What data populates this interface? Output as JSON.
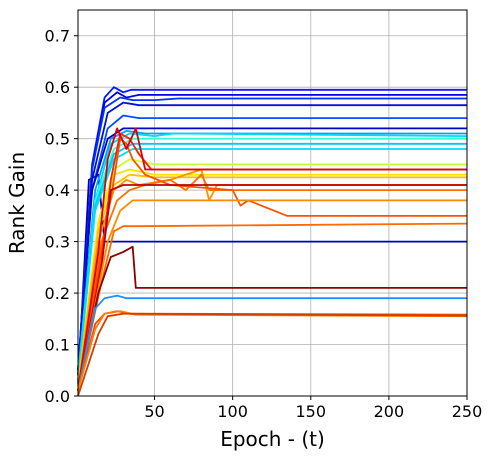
{
  "chart_data": {
    "type": "line",
    "title": "",
    "xlabel": "Epoch - (t)",
    "ylabel": "Rank Gain",
    "xlim": [
      1,
      250
    ],
    "ylim": [
      0.0,
      0.75
    ],
    "xticks": [
      50,
      100,
      150,
      200,
      250
    ],
    "yticks": [
      0.0,
      0.1,
      0.2,
      0.3,
      0.4,
      0.5,
      0.6,
      0.7
    ],
    "xtick_labels": [
      "50",
      "100",
      "150",
      "200",
      "250"
    ],
    "ytick_labels": [
      "0.0",
      "0.1",
      "0.2",
      "0.3",
      "0.4",
      "0.5",
      "0.6",
      "0.7"
    ],
    "grid": true,
    "legend": "none",
    "colormap": "jet",
    "series": [
      {
        "color": "#0000b0",
        "values": [
          [
            1,
            0.02
          ],
          [
            8,
            0.42
          ],
          [
            14,
            0.43
          ],
          [
            18,
            0.3
          ],
          [
            250,
            0.3
          ]
        ]
      },
      {
        "color": "#0018ff",
        "values": [
          [
            1,
            0.05
          ],
          [
            10,
            0.45
          ],
          [
            18,
            0.58
          ],
          [
            24,
            0.6
          ],
          [
            30,
            0.59
          ],
          [
            35,
            0.595
          ],
          [
            250,
            0.595
          ]
        ]
      },
      {
        "color": "#0000e0",
        "values": [
          [
            1,
            0.05
          ],
          [
            10,
            0.44
          ],
          [
            18,
            0.57
          ],
          [
            26,
            0.59
          ],
          [
            32,
            0.58
          ],
          [
            40,
            0.585
          ],
          [
            250,
            0.585
          ]
        ]
      },
      {
        "color": "#0030ff",
        "values": [
          [
            1,
            0.05
          ],
          [
            10,
            0.44
          ],
          [
            18,
            0.56
          ],
          [
            28,
            0.58
          ],
          [
            36,
            0.575
          ],
          [
            50,
            0.575
          ],
          [
            65,
            0.578
          ],
          [
            250,
            0.578
          ]
        ]
      },
      {
        "color": "#0010d0",
        "values": [
          [
            1,
            0.04
          ],
          [
            10,
            0.42
          ],
          [
            20,
            0.55
          ],
          [
            30,
            0.57
          ],
          [
            40,
            0.565
          ],
          [
            250,
            0.565
          ]
        ]
      },
      {
        "color": "#0050ff",
        "values": [
          [
            1,
            0.04
          ],
          [
            10,
            0.4
          ],
          [
            20,
            0.52
          ],
          [
            30,
            0.545
          ],
          [
            40,
            0.54
          ],
          [
            250,
            0.54
          ]
        ]
      },
      {
        "color": "#0000c8",
        "values": [
          [
            1,
            0.04
          ],
          [
            10,
            0.4
          ],
          [
            20,
            0.5
          ],
          [
            30,
            0.52
          ],
          [
            40,
            0.52
          ],
          [
            250,
            0.52
          ]
        ]
      },
      {
        "color": "#00a0ff",
        "values": [
          [
            1,
            0.04
          ],
          [
            12,
            0.4
          ],
          [
            22,
            0.5
          ],
          [
            32,
            0.515
          ],
          [
            44,
            0.51
          ],
          [
            250,
            0.51
          ]
        ]
      },
      {
        "color": "#00d8ff",
        "values": [
          [
            1,
            0.03
          ],
          [
            12,
            0.38
          ],
          [
            22,
            0.49
          ],
          [
            34,
            0.51
          ],
          [
            50,
            0.505
          ],
          [
            62,
            0.51
          ],
          [
            250,
            0.505
          ]
        ]
      },
      {
        "color": "#30ffd0",
        "values": [
          [
            1,
            0.03
          ],
          [
            12,
            0.38
          ],
          [
            24,
            0.48
          ],
          [
            36,
            0.5
          ],
          [
            50,
            0.5
          ],
          [
            250,
            0.5
          ]
        ]
      },
      {
        "color": "#00c8ff",
        "values": [
          [
            1,
            0.03
          ],
          [
            12,
            0.37
          ],
          [
            24,
            0.47
          ],
          [
            36,
            0.49
          ],
          [
            50,
            0.49
          ],
          [
            250,
            0.49
          ]
        ]
      },
      {
        "color": "#00e0ee",
        "values": [
          [
            1,
            0.03
          ],
          [
            12,
            0.36
          ],
          [
            24,
            0.46
          ],
          [
            36,
            0.48
          ],
          [
            50,
            0.48
          ],
          [
            250,
            0.48
          ]
        ]
      },
      {
        "color": "#c8ff30",
        "values": [
          [
            1,
            0.02
          ],
          [
            14,
            0.34
          ],
          [
            24,
            0.44
          ],
          [
            34,
            0.46
          ],
          [
            50,
            0.45
          ],
          [
            250,
            0.45
          ]
        ]
      },
      {
        "color": "#ffe000",
        "values": [
          [
            1,
            0.02
          ],
          [
            14,
            0.33
          ],
          [
            24,
            0.43
          ],
          [
            34,
            0.44
          ],
          [
            50,
            0.43
          ],
          [
            250,
            0.43
          ]
        ]
      },
      {
        "color": "#ffc000",
        "values": [
          [
            1,
            0.02
          ],
          [
            14,
            0.32
          ],
          [
            24,
            0.41
          ],
          [
            34,
            0.43
          ],
          [
            50,
            0.425
          ],
          [
            250,
            0.425
          ]
        ]
      },
      {
        "color": "#ff9000",
        "values": [
          [
            1,
            0.01
          ],
          [
            14,
            0.3
          ],
          [
            24,
            0.4
          ],
          [
            32,
            0.42
          ],
          [
            40,
            0.41
          ],
          [
            60,
            0.42
          ],
          [
            80,
            0.44
          ],
          [
            85,
            0.38
          ],
          [
            90,
            0.41
          ],
          [
            250,
            0.41
          ]
        ]
      },
      {
        "color": "#ff7000",
        "values": [
          [
            1,
            0.01
          ],
          [
            16,
            0.3
          ],
          [
            26,
            0.38
          ],
          [
            34,
            0.4
          ],
          [
            44,
            0.41
          ],
          [
            60,
            0.42
          ],
          [
            70,
            0.4
          ],
          [
            80,
            0.43
          ],
          [
            85,
            0.4
          ],
          [
            250,
            0.4
          ]
        ]
      },
      {
        "color": "#ff5000",
        "values": [
          [
            1,
            0.01
          ],
          [
            16,
            0.28
          ],
          [
            24,
            0.42
          ],
          [
            28,
            0.5
          ],
          [
            32,
            0.49
          ],
          [
            36,
            0.46
          ],
          [
            44,
            0.43
          ],
          [
            60,
            0.41
          ],
          [
            100,
            0.4
          ],
          [
            105,
            0.37
          ],
          [
            110,
            0.38
          ],
          [
            135,
            0.35
          ],
          [
            250,
            0.35
          ]
        ]
      },
      {
        "color": "#ff2000",
        "values": [
          [
            1,
            0.01
          ],
          [
            16,
            0.26
          ],
          [
            22,
            0.42
          ],
          [
            28,
            0.51
          ],
          [
            34,
            0.5
          ],
          [
            40,
            0.47
          ],
          [
            48,
            0.44
          ],
          [
            250,
            0.44
          ]
        ]
      },
      {
        "color": "#e00000",
        "values": [
          [
            1,
            0.01
          ],
          [
            14,
            0.28
          ],
          [
            20,
            0.46
          ],
          [
            26,
            0.52
          ],
          [
            32,
            0.48
          ],
          [
            38,
            0.52
          ],
          [
            44,
            0.44
          ],
          [
            250,
            0.44
          ]
        ]
      },
      {
        "color": "#c00000",
        "values": [
          [
            1,
            0.01
          ],
          [
            16,
            0.25
          ],
          [
            22,
            0.4
          ],
          [
            30,
            0.41
          ],
          [
            40,
            0.41
          ],
          [
            250,
            0.41
          ]
        ]
      },
      {
        "color": "#ff6a00",
        "values": [
          [
            1,
            0.01
          ],
          [
            16,
            0.22
          ],
          [
            24,
            0.32
          ],
          [
            30,
            0.33
          ],
          [
            40,
            0.33
          ],
          [
            250,
            0.335
          ]
        ]
      },
      {
        "color": "#ff8a00",
        "values": [
          [
            1,
            0.01
          ],
          [
            20,
            0.3
          ],
          [
            28,
            0.36
          ],
          [
            36,
            0.38
          ],
          [
            50,
            0.38
          ],
          [
            250,
            0.38
          ]
        ]
      },
      {
        "color": "#8b0000",
        "values": [
          [
            1,
            0.01
          ],
          [
            14,
            0.2
          ],
          [
            22,
            0.27
          ],
          [
            30,
            0.28
          ],
          [
            36,
            0.29
          ],
          [
            38,
            0.21
          ],
          [
            250,
            0.21
          ]
        ]
      },
      {
        "color": "#1e90ff",
        "values": [
          [
            1,
            0.01
          ],
          [
            12,
            0.17
          ],
          [
            18,
            0.19
          ],
          [
            26,
            0.195
          ],
          [
            32,
            0.19
          ],
          [
            250,
            0.19
          ]
        ]
      },
      {
        "color": "#ff4500",
        "values": [
          [
            1,
            0.01
          ],
          [
            12,
            0.14
          ],
          [
            18,
            0.16
          ],
          [
            26,
            0.165
          ],
          [
            34,
            0.16
          ],
          [
            250,
            0.158
          ]
        ]
      },
      {
        "color": "#ff7f00",
        "values": [
          [
            1,
            0.01
          ],
          [
            12,
            0.13
          ],
          [
            18,
            0.16
          ],
          [
            28,
            0.165
          ],
          [
            38,
            0.158
          ],
          [
            250,
            0.155
          ]
        ]
      },
      {
        "color": "#d04000",
        "values": [
          [
            1,
            0.0
          ],
          [
            14,
            0.12
          ],
          [
            20,
            0.155
          ],
          [
            30,
            0.16
          ],
          [
            250,
            0.156
          ]
        ]
      }
    ]
  }
}
